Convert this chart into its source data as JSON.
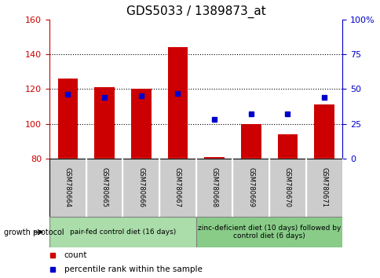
{
  "title": "GDS5033 / 1389873_at",
  "categories": [
    "GSM780664",
    "GSM780665",
    "GSM780666",
    "GSM780667",
    "GSM780668",
    "GSM780669",
    "GSM780670",
    "GSM780671"
  ],
  "count_values": [
    126,
    121,
    120,
    144,
    81,
    100,
    94,
    111
  ],
  "percentile_values": [
    46,
    44,
    45,
    47,
    28,
    32,
    32,
    44
  ],
  "ylim_left": [
    80,
    160
  ],
  "ylim_right": [
    0,
    100
  ],
  "yticks_left": [
    80,
    100,
    120,
    140,
    160
  ],
  "yticks_right": [
    0,
    25,
    50,
    75,
    100
  ],
  "ytick_labels_right": [
    "0",
    "25",
    "50",
    "75",
    "100%"
  ],
  "bar_color": "#cc0000",
  "dot_color": "#0000cc",
  "bar_base": 80,
  "group1_label": "pair-fed control diet (16 days)",
  "group2_label": "zinc-deficient diet (10 days) followed by\ncontrol diet (6 days)",
  "growth_protocol_label": "growth protocol",
  "group1_indices": [
    0,
    1,
    2,
    3
  ],
  "group2_indices": [
    4,
    5,
    6,
    7
  ],
  "group1_color": "#aaddaa",
  "group2_color": "#88cc88",
  "label_box_color": "#cccccc",
  "legend_count_label": "count",
  "legend_percentile_label": "percentile rank within the sample",
  "title_fontsize": 11,
  "tick_fontsize": 8,
  "cat_fontsize": 6,
  "group_fontsize": 6.5,
  "legend_fontsize": 7.5
}
